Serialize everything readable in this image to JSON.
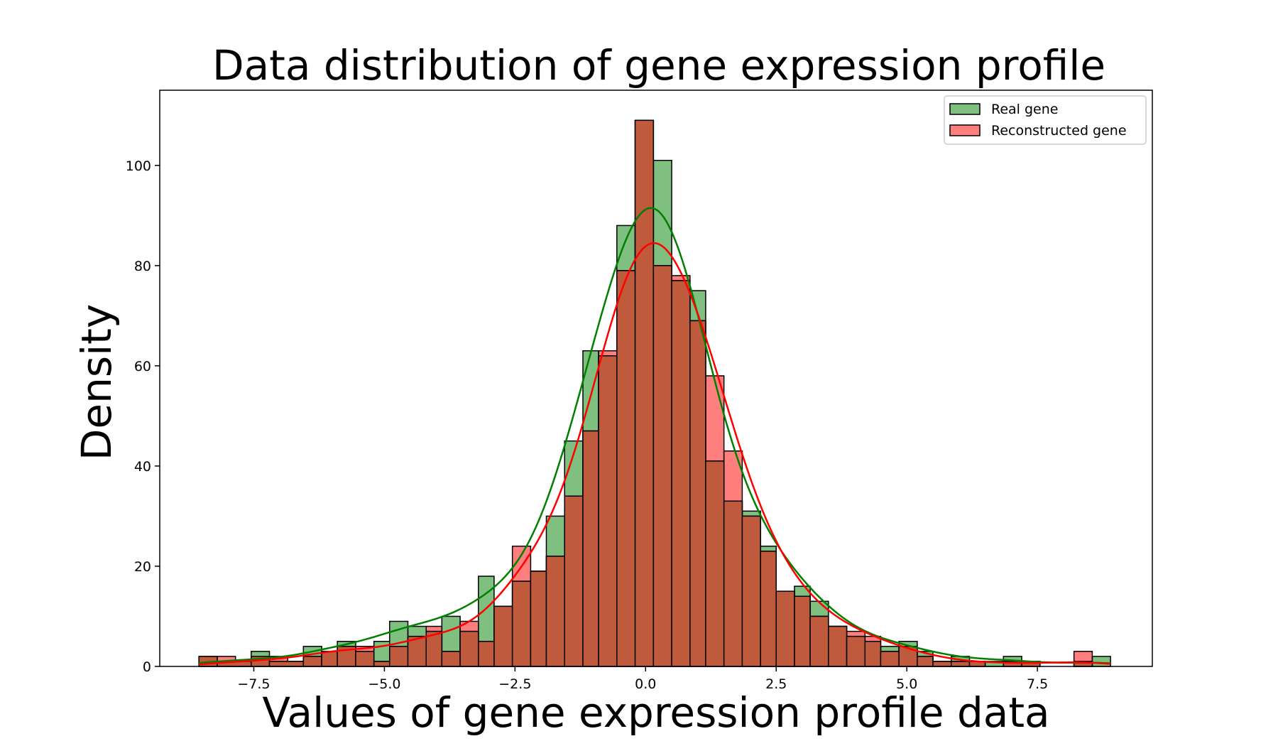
{
  "chart_data": {
    "type": "histogram",
    "title": "Data distribution of gene expression profile",
    "xlabel": "Values of gene expression profile data",
    "ylabel": "Density",
    "xlim": [
      -9.3,
      9.7
    ],
    "ylim": [
      0,
      115
    ],
    "xticks": [
      -7.5,
      -5.0,
      -2.5,
      0.0,
      2.5,
      5.0,
      7.5
    ],
    "xtick_labels": [
      "−7.5",
      "−5.0",
      "−2.5",
      "0.0",
      "2.5",
      "5.0",
      "7.5"
    ],
    "yticks": [
      0,
      20,
      40,
      60,
      80,
      100
    ],
    "ytick_labels": [
      "0",
      "20",
      "40",
      "60",
      "80",
      "100"
    ],
    "grid": false,
    "legend_position": "top-right",
    "series": [
      {
        "name": "Real gene",
        "color": "#008000",
        "fill_opacity": 0.5,
        "bins": [
          [
            -8.55,
            -8.2,
            2
          ],
          [
            -8.2,
            -7.55,
            1
          ],
          [
            -7.55,
            -7.2,
            3
          ],
          [
            -7.2,
            -6.55,
            1
          ],
          [
            -6.55,
            -6.2,
            4
          ],
          [
            -6.2,
            -5.9,
            3
          ],
          [
            -5.9,
            -5.55,
            5
          ],
          [
            -5.55,
            -5.2,
            3
          ],
          [
            -5.2,
            -4.9,
            5
          ],
          [
            -4.9,
            -4.55,
            9
          ],
          [
            -4.55,
            -4.2,
            8
          ],
          [
            -4.2,
            -3.9,
            7
          ],
          [
            -3.9,
            -3.55,
            10
          ],
          [
            -3.55,
            -3.2,
            7
          ],
          [
            -3.2,
            -2.9,
            18
          ],
          [
            -2.9,
            -2.55,
            12
          ],
          [
            -2.55,
            -2.2,
            17
          ],
          [
            -2.2,
            -1.9,
            19
          ],
          [
            -1.9,
            -1.55,
            30
          ],
          [
            -1.55,
            -1.2,
            45
          ],
          [
            -1.2,
            -0.9,
            63
          ],
          [
            -0.9,
            -0.55,
            62
          ],
          [
            -0.55,
            -0.2,
            88
          ],
          [
            -0.2,
            0.15,
            109
          ],
          [
            0.15,
            0.5,
            101
          ],
          [
            0.5,
            0.85,
            77
          ],
          [
            0.85,
            1.15,
            75
          ],
          [
            1.15,
            1.5,
            41
          ],
          [
            1.5,
            1.85,
            33
          ],
          [
            1.85,
            2.2,
            31
          ],
          [
            2.2,
            2.5,
            24
          ],
          [
            2.5,
            2.85,
            15
          ],
          [
            2.85,
            3.15,
            16
          ],
          [
            3.15,
            3.5,
            13
          ],
          [
            3.5,
            3.85,
            8
          ],
          [
            3.85,
            4.2,
            6
          ],
          [
            4.2,
            4.5,
            5
          ],
          [
            4.5,
            4.85,
            4
          ],
          [
            4.85,
            5.2,
            5
          ],
          [
            5.2,
            5.5,
            3
          ],
          [
            5.5,
            5.85,
            1
          ],
          [
            5.85,
            6.2,
            2
          ],
          [
            6.2,
            6.5,
            1
          ],
          [
            6.5,
            6.85,
            1
          ],
          [
            6.85,
            7.2,
            2
          ],
          [
            7.2,
            7.55,
            1
          ],
          [
            7.55,
            7.85,
            0
          ],
          [
            7.85,
            8.2,
            0
          ],
          [
            8.2,
            8.55,
            1
          ],
          [
            8.55,
            8.9,
            2
          ]
        ],
        "kde_peak": 91.5
      },
      {
        "name": "Reconstructed gene",
        "color": "#ff0000",
        "fill_opacity": 0.5,
        "bins": [
          [
            -8.2,
            -7.85,
            2
          ],
          [
            -7.85,
            -7.2,
            1
          ],
          [
            -7.2,
            -6.85,
            2
          ],
          [
            -6.85,
            -6.55,
            1
          ],
          [
            -6.55,
            -6.2,
            2
          ],
          [
            -6.2,
            -5.9,
            3
          ],
          [
            -5.9,
            -5.55,
            4
          ],
          [
            -5.55,
            -5.2,
            4
          ],
          [
            -5.2,
            -4.9,
            1
          ],
          [
            -4.9,
            -4.55,
            4
          ],
          [
            -4.55,
            -4.2,
            6
          ],
          [
            -4.2,
            -3.9,
            8
          ],
          [
            -3.9,
            -3.55,
            3
          ],
          [
            -3.55,
            -3.2,
            9
          ],
          [
            -3.2,
            -2.9,
            5
          ],
          [
            -2.9,
            -2.55,
            12
          ],
          [
            -2.55,
            -2.2,
            24
          ],
          [
            -2.2,
            -1.9,
            19
          ],
          [
            -1.9,
            -1.55,
            22
          ],
          [
            -1.55,
            -1.2,
            34
          ],
          [
            -1.2,
            -0.9,
            47
          ],
          [
            -0.9,
            -0.55,
            63
          ],
          [
            -0.55,
            -0.2,
            79
          ],
          [
            -0.2,
            0.15,
            109
          ],
          [
            0.15,
            0.5,
            80
          ],
          [
            0.5,
            0.85,
            78
          ],
          [
            0.85,
            1.15,
            69
          ],
          [
            1.15,
            1.5,
            58
          ],
          [
            1.5,
            1.85,
            43
          ],
          [
            1.85,
            2.2,
            30
          ],
          [
            2.2,
            2.5,
            23
          ],
          [
            2.5,
            2.85,
            15
          ],
          [
            2.85,
            3.15,
            14
          ],
          [
            3.15,
            3.5,
            10
          ],
          [
            3.5,
            3.85,
            8
          ],
          [
            3.85,
            4.2,
            7
          ],
          [
            4.2,
            4.5,
            6
          ],
          [
            4.5,
            4.85,
            3
          ],
          [
            4.85,
            5.2,
            4
          ],
          [
            5.2,
            5.5,
            2
          ],
          [
            5.5,
            5.85,
            1
          ],
          [
            5.85,
            6.2,
            1
          ],
          [
            6.2,
            6.5,
            1
          ],
          [
            6.5,
            6.85,
            0
          ],
          [
            6.85,
            7.2,
            1
          ],
          [
            7.2,
            7.55,
            1
          ],
          [
            7.55,
            7.85,
            0
          ],
          [
            7.85,
            8.2,
            0
          ],
          [
            8.2,
            8.55,
            3
          ],
          [
            8.55,
            8.9,
            0
          ]
        ],
        "kde_peak": 84.5
      }
    ],
    "overlap_color": "#c05a3c"
  }
}
